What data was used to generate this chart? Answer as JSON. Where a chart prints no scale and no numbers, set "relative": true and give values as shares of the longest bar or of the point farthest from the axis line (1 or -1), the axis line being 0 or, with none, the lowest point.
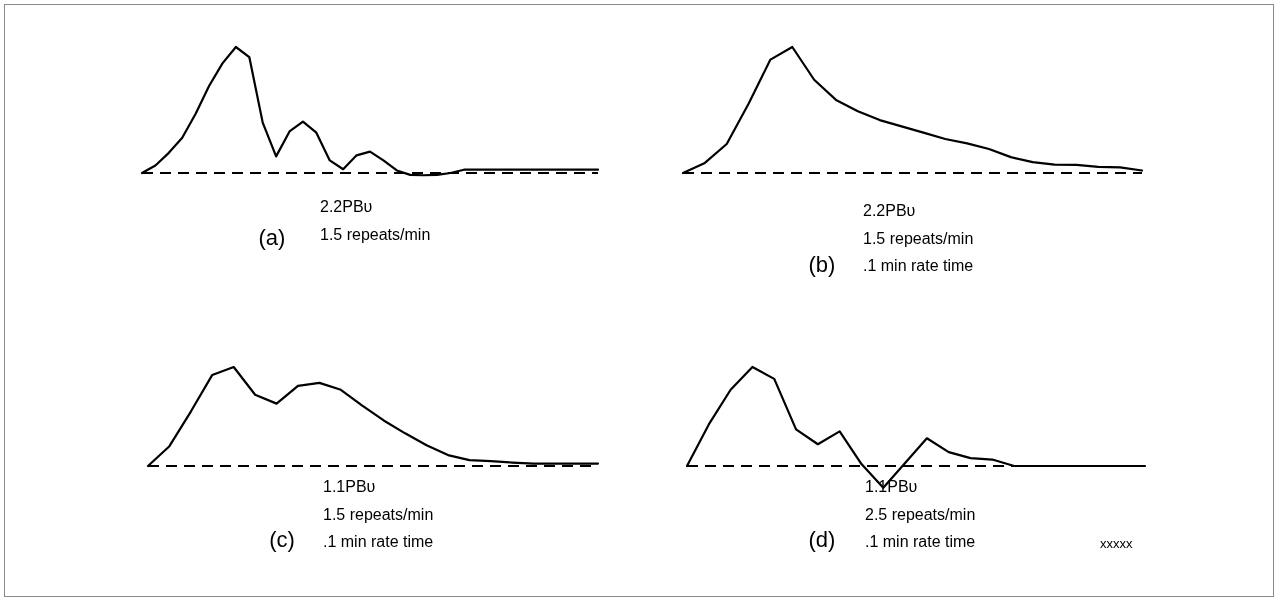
{
  "chart_data": [
    {
      "type": "line",
      "relative": true,
      "line_style": "solid",
      "categories": [
        null,
        null,
        null,
        null,
        null,
        null,
        null,
        null,
        null,
        null,
        null,
        null,
        null,
        null,
        null,
        null,
        null,
        null,
        null,
        null,
        null,
        null,
        null,
        null,
        null,
        null,
        null,
        null,
        null,
        null,
        null,
        null,
        null,
        null,
        null
      ],
      "series": [
        {
          "color": "#000000",
          "values": [
            0,
            0.06,
            0.16,
            0.28,
            0.47,
            0.69,
            0.87,
            1,
            0.92,
            0.4,
            0.132,
            0.33,
            0.408,
            0.32,
            0.1,
            0.03,
            0.14,
            0.17,
            0.1,
            0.02,
            -0.015,
            -0.018,
            -0.015,
            0,
            0.026,
            0.026,
            0.026,
            0.026,
            0.026,
            0.026,
            0.026,
            0.026,
            0.026,
            0.026,
            0.026
          ]
        }
      ],
      "annotations": [
        "(a)",
        "2.2PBᴜ",
        "1.5 repeats/min"
      ]
    },
    {
      "type": "line",
      "relative": true,
      "line_style": "solid",
      "categories": [
        null,
        null,
        null,
        null,
        null,
        null,
        null,
        null,
        null,
        null,
        null,
        null,
        null,
        null,
        null,
        null,
        null,
        null,
        null,
        null,
        null,
        null
      ],
      "series": [
        {
          "color": "#000000",
          "values": [
            0,
            0.08,
            0.23,
            0.55,
            0.9,
            1,
            0.74,
            0.58,
            0.49,
            0.42,
            0.37,
            0.32,
            0.27,
            0.235,
            0.19,
            0.126,
            0.086,
            0.066,
            0.065,
            0.048,
            0.045,
            0.02
          ]
        }
      ],
      "annotations": [
        "(b)",
        "2.2PBᴜ",
        "1.5 repeats/min",
        ".1 min rate time"
      ]
    },
    {
      "type": "line",
      "relative": true,
      "line_style": "solid",
      "categories": [
        null,
        null,
        null,
        null,
        null,
        null,
        null,
        null,
        null,
        null,
        null,
        null,
        null,
        null,
        null,
        null,
        null,
        null,
        null,
        null,
        null,
        null
      ],
      "series": [
        {
          "color": "#000000",
          "values": [
            0,
            0.2,
            0.55,
            0.92,
            1,
            0.72,
            0.63,
            0.81,
            0.84,
            0.77,
            0.61,
            0.46,
            0.33,
            0.21,
            0.11,
            0.06,
            0.05,
            0.035,
            0.024,
            0.024,
            0.024,
            0.024
          ]
        }
      ],
      "annotations": [
        "(c)",
        "1.1PBᴜ",
        "1.5 repeats/min",
        ".1 min rate time"
      ]
    },
    {
      "type": "line",
      "relative": true,
      "line_style": "solid",
      "categories": [
        null,
        null,
        null,
        null,
        null,
        null,
        null,
        null,
        null,
        null,
        null,
        null,
        null,
        null,
        null,
        null,
        null,
        null,
        null,
        null,
        null,
        null
      ],
      "series": [
        {
          "color": "#000000",
          "values": [
            0,
            0.42,
            0.77,
            1,
            0.88,
            0.37,
            0.22,
            0.35,
            0.02,
            -0.22,
            0.03,
            0.28,
            0.14,
            0.08,
            0.065,
            0,
            0,
            0,
            0,
            0,
            0,
            0
          ]
        }
      ],
      "ref_lines": [
        {
          "axis": "y",
          "value": 0,
          "color": "#000000",
          "line_style": "dashed"
        }
      ],
      "annotations": [
        "(d)",
        "1.1PBᴜ",
        "2.5 repeats/min",
        ".1 min rate time",
        "xxxxx"
      ]
    }
  ]
}
